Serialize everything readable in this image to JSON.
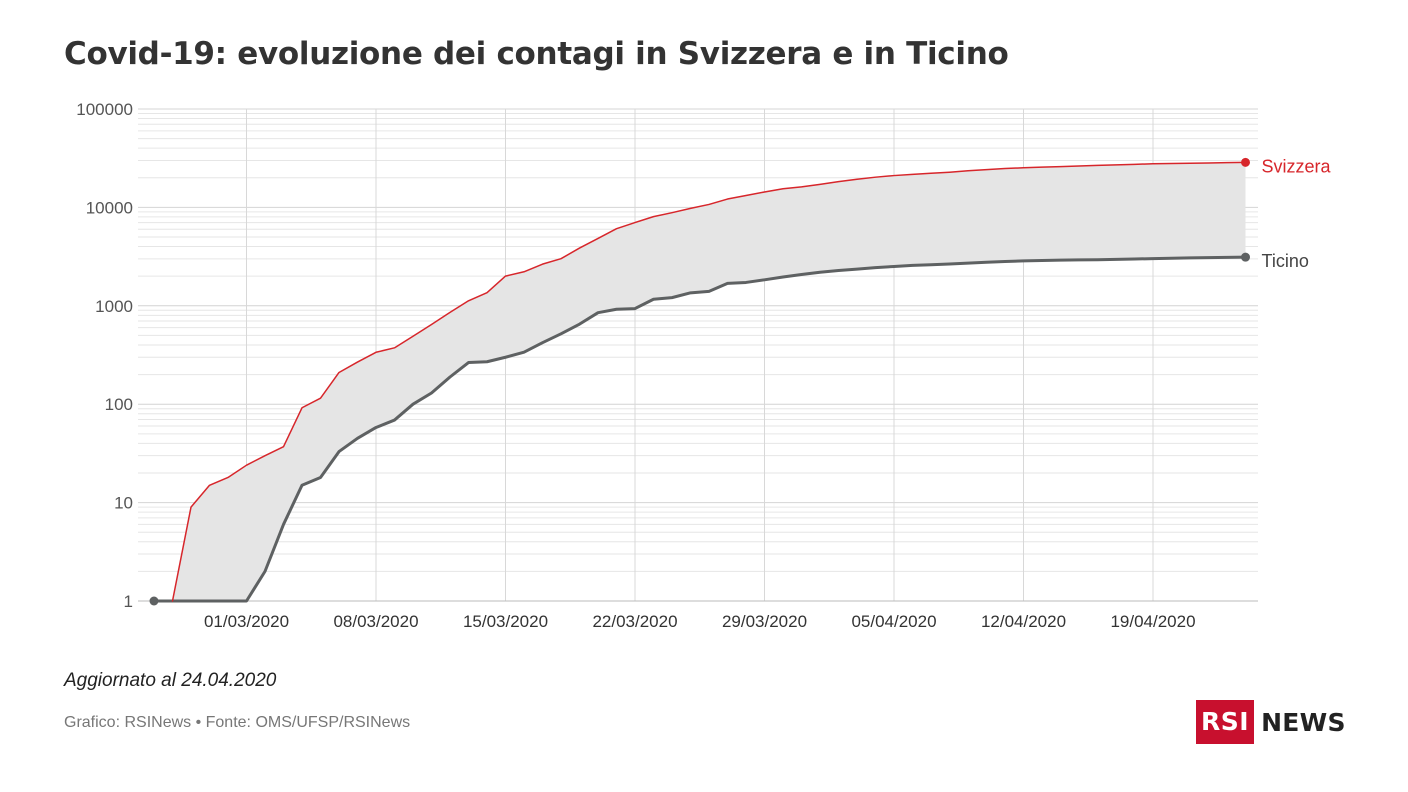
{
  "title": "Covid-19: evoluzione dei contagi in Svizzera e in Ticino",
  "updated": "Aggiornato al 24.04.2020",
  "source": "Grafico: RSINews • Fonte: OMS/UFSP/RSINews",
  "logo": {
    "box": "RSI",
    "text": "NEWS"
  },
  "chart_data": {
    "type": "line",
    "title": "Covid-19: evoluzione dei contagi in Svizzera e in Ticino",
    "xlabel": "",
    "ylabel": "",
    "yscale": "log",
    "ylim": [
      1,
      100000
    ],
    "y_ticks": [
      "1",
      "10",
      "100",
      "1000",
      "10000",
      "100000"
    ],
    "x_tick_labels": [
      "01/03/2020",
      "08/03/2020",
      "15/03/2020",
      "22/03/2020",
      "29/03/2020",
      "05/04/2020",
      "12/04/2020",
      "19/04/2020"
    ],
    "xlim": [
      "2020-02-25",
      "2020-04-24"
    ],
    "grid": true,
    "area_between_series": true,
    "series": [
      {
        "name": "Svizzera",
        "color": "#d7262b",
        "x": [
          "2020-02-26",
          "2020-02-27",
          "2020-02-28",
          "2020-02-29",
          "2020-03-01",
          "2020-03-02",
          "2020-03-03",
          "2020-03-04",
          "2020-03-05",
          "2020-03-06",
          "2020-03-07",
          "2020-03-08",
          "2020-03-09",
          "2020-03-10",
          "2020-03-11",
          "2020-03-12",
          "2020-03-13",
          "2020-03-14",
          "2020-03-15",
          "2020-03-16",
          "2020-03-17",
          "2020-03-18",
          "2020-03-19",
          "2020-03-20",
          "2020-03-21",
          "2020-03-22",
          "2020-03-23",
          "2020-03-24",
          "2020-03-25",
          "2020-03-26",
          "2020-03-27",
          "2020-03-28",
          "2020-03-29",
          "2020-03-30",
          "2020-03-31",
          "2020-04-01",
          "2020-04-02",
          "2020-04-03",
          "2020-04-04",
          "2020-04-05",
          "2020-04-06",
          "2020-04-07",
          "2020-04-08",
          "2020-04-09",
          "2020-04-10",
          "2020-04-11",
          "2020-04-12",
          "2020-04-13",
          "2020-04-14",
          "2020-04-15",
          "2020-04-16",
          "2020-04-17",
          "2020-04-18",
          "2020-04-19",
          "2020-04-20",
          "2020-04-21",
          "2020-04-22",
          "2020-04-23",
          "2020-04-24"
        ],
        "values": [
          1,
          9,
          15,
          18,
          24,
          30,
          37,
          92,
          115,
          210,
          268,
          337,
          374,
          491,
          645,
          858,
          1125,
          1359,
          2003,
          2217,
          2650,
          3010,
          3863,
          4840,
          6077,
          7014,
          8060,
          8836,
          9765,
          10714,
          12161,
          13213,
          14352,
          15475,
          16176,
          17139,
          18267,
          19303,
          20278,
          21065,
          21652,
          22242,
          22789,
          23574,
          24228,
          24820,
          25300,
          25688,
          25936,
          26336,
          26732,
          27078,
          27404,
          27740,
          27944,
          28063,
          28268,
          28496,
          28677
        ]
      },
      {
        "name": "Ticino",
        "color": "#5e6162",
        "x": [
          "2020-02-25",
          "2020-02-26",
          "2020-02-27",
          "2020-02-28",
          "2020-02-29",
          "2020-03-01",
          "2020-03-02",
          "2020-03-03",
          "2020-03-04",
          "2020-03-05",
          "2020-03-06",
          "2020-03-07",
          "2020-03-08",
          "2020-03-09",
          "2020-03-10",
          "2020-03-11",
          "2020-03-12",
          "2020-03-13",
          "2020-03-14",
          "2020-03-15",
          "2020-03-16",
          "2020-03-17",
          "2020-03-18",
          "2020-03-19",
          "2020-03-20",
          "2020-03-21",
          "2020-03-22",
          "2020-03-23",
          "2020-03-24",
          "2020-03-25",
          "2020-03-26",
          "2020-03-27",
          "2020-03-28",
          "2020-03-29",
          "2020-03-30",
          "2020-03-31",
          "2020-04-01",
          "2020-04-02",
          "2020-04-03",
          "2020-04-04",
          "2020-04-05",
          "2020-04-06",
          "2020-04-07",
          "2020-04-08",
          "2020-04-09",
          "2020-04-10",
          "2020-04-11",
          "2020-04-12",
          "2020-04-13",
          "2020-04-14",
          "2020-04-15",
          "2020-04-16",
          "2020-04-17",
          "2020-04-18",
          "2020-04-19",
          "2020-04-20",
          "2020-04-21",
          "2020-04-22",
          "2020-04-23",
          "2020-04-24"
        ],
        "values": [
          1,
          1,
          1,
          1,
          1,
          1,
          2,
          6,
          15,
          18,
          33,
          45,
          58,
          69,
          100,
          130,
          189,
          265,
          270,
          300,
          338,
          422,
          519,
          651,
          851,
          922,
          937,
          1165,
          1211,
          1354,
          1401,
          1688,
          1727,
          1837,
          1962,
          2081,
          2195,
          2282,
          2358,
          2441,
          2509,
          2575,
          2615,
          2663,
          2716,
          2774,
          2819,
          2859,
          2883,
          2908,
          2925,
          2940,
          2963,
          2991,
          3015,
          3044,
          3069,
          3088,
          3104,
          3123
        ]
      }
    ]
  }
}
